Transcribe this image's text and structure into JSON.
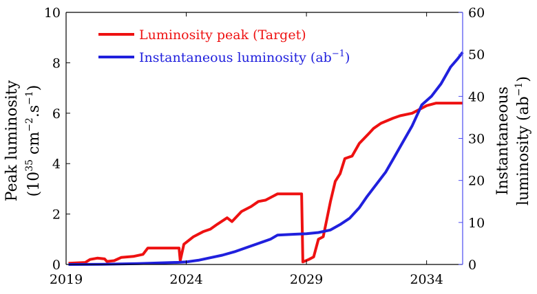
{
  "chart_data": {
    "type": "line",
    "xlim": [
      2019,
      2035.5
    ],
    "x_ticks": [
      2019,
      2024,
      2029,
      2034
    ],
    "y_left": {
      "label_line1": "Peak luminosity",
      "label_line2_pre": "(10",
      "label_line2_sup1": "35",
      "label_line2_mid": " cm",
      "label_line2_sup2": "−2",
      "label_line2_mid2": ".s",
      "label_line2_sup3": "−1",
      "label_line2_post": ")",
      "lim": [
        0,
        10
      ],
      "ticks": [
        0,
        2,
        4,
        6,
        8,
        10
      ]
    },
    "y_right": {
      "label_line1": "Instantaneous",
      "label_line2_pre": "luminosity (ab",
      "label_line2_sup": "−1",
      "label_line2_post": ")",
      "lim": [
        0,
        60
      ],
      "ticks": [
        0,
        10,
        20,
        30,
        40,
        50,
        60
      ]
    },
    "legend": {
      "placement": "top-left",
      "entries": [
        {
          "text": "Luminosity peak (Target)"
        },
        {
          "text_pre": "Instantaneous luminosity (ab",
          "text_sup": "−1",
          "text_post": ")"
        }
      ]
    },
    "series": [
      {
        "color": "#ee1111",
        "axis": "left",
        "points": [
          [
            2019.1,
            0.05
          ],
          [
            2019.8,
            0.08
          ],
          [
            2020.0,
            0.2
          ],
          [
            2020.3,
            0.25
          ],
          [
            2020.6,
            0.22
          ],
          [
            2020.7,
            0.12
          ],
          [
            2021.0,
            0.15
          ],
          [
            2021.3,
            0.28
          ],
          [
            2021.8,
            0.32
          ],
          [
            2022.2,
            0.4
          ],
          [
            2022.4,
            0.65
          ],
          [
            2023.7,
            0.65
          ],
          [
            2023.75,
            0.15
          ],
          [
            2023.9,
            0.8
          ],
          [
            2024.3,
            1.1
          ],
          [
            2024.7,
            1.3
          ],
          [
            2025.0,
            1.4
          ],
          [
            2025.3,
            1.6
          ],
          [
            2025.7,
            1.85
          ],
          [
            2025.9,
            1.7
          ],
          [
            2026.3,
            2.1
          ],
          [
            2026.7,
            2.3
          ],
          [
            2027.0,
            2.5
          ],
          [
            2027.3,
            2.55
          ],
          [
            2027.6,
            2.7
          ],
          [
            2027.8,
            2.8
          ],
          [
            2028.8,
            2.8
          ],
          [
            2028.85,
            0.1
          ],
          [
            2029.1,
            0.2
          ],
          [
            2029.3,
            0.3
          ],
          [
            2029.5,
            1.0
          ],
          [
            2029.7,
            1.1
          ],
          [
            2029.85,
            1.8
          ],
          [
            2030.0,
            2.5
          ],
          [
            2030.2,
            3.3
          ],
          [
            2030.4,
            3.6
          ],
          [
            2030.6,
            4.2
          ],
          [
            2030.9,
            4.3
          ],
          [
            2031.2,
            4.8
          ],
          [
            2031.6,
            5.2
          ],
          [
            2031.8,
            5.4
          ],
          [
            2032.1,
            5.6
          ],
          [
            2032.6,
            5.8
          ],
          [
            2032.9,
            5.9
          ],
          [
            2033.4,
            6.0
          ],
          [
            2033.8,
            6.2
          ],
          [
            2034.0,
            6.3
          ],
          [
            2034.4,
            6.4
          ],
          [
            2035.5,
            6.4
          ]
        ]
      },
      {
        "color": "#2020dd",
        "axis": "right",
        "points": [
          [
            2019.1,
            0.0
          ],
          [
            2020.5,
            0.05
          ],
          [
            2022.0,
            0.2
          ],
          [
            2023.0,
            0.4
          ],
          [
            2023.7,
            0.5
          ],
          [
            2024.0,
            0.6
          ],
          [
            2024.5,
            1.0
          ],
          [
            2025.0,
            1.6
          ],
          [
            2025.5,
            2.2
          ],
          [
            2026.0,
            3.0
          ],
          [
            2026.5,
            4.0
          ],
          [
            2027.0,
            5.0
          ],
          [
            2027.5,
            6.0
          ],
          [
            2027.8,
            7.0
          ],
          [
            2028.5,
            7.2
          ],
          [
            2029.0,
            7.3
          ],
          [
            2029.5,
            7.6
          ],
          [
            2030.0,
            8.2
          ],
          [
            2030.4,
            9.5
          ],
          [
            2030.8,
            11.0
          ],
          [
            2031.2,
            13.5
          ],
          [
            2031.5,
            16.0
          ],
          [
            2031.9,
            19.0
          ],
          [
            2032.3,
            22.0
          ],
          [
            2032.6,
            25.0
          ],
          [
            2033.0,
            29.0
          ],
          [
            2033.4,
            33.0
          ],
          [
            2033.8,
            38.0
          ],
          [
            2034.2,
            40.0
          ],
          [
            2034.6,
            43.0
          ],
          [
            2035.0,
            47.0
          ],
          [
            2035.3,
            49.0
          ],
          [
            2035.5,
            50.5
          ]
        ]
      }
    ]
  }
}
